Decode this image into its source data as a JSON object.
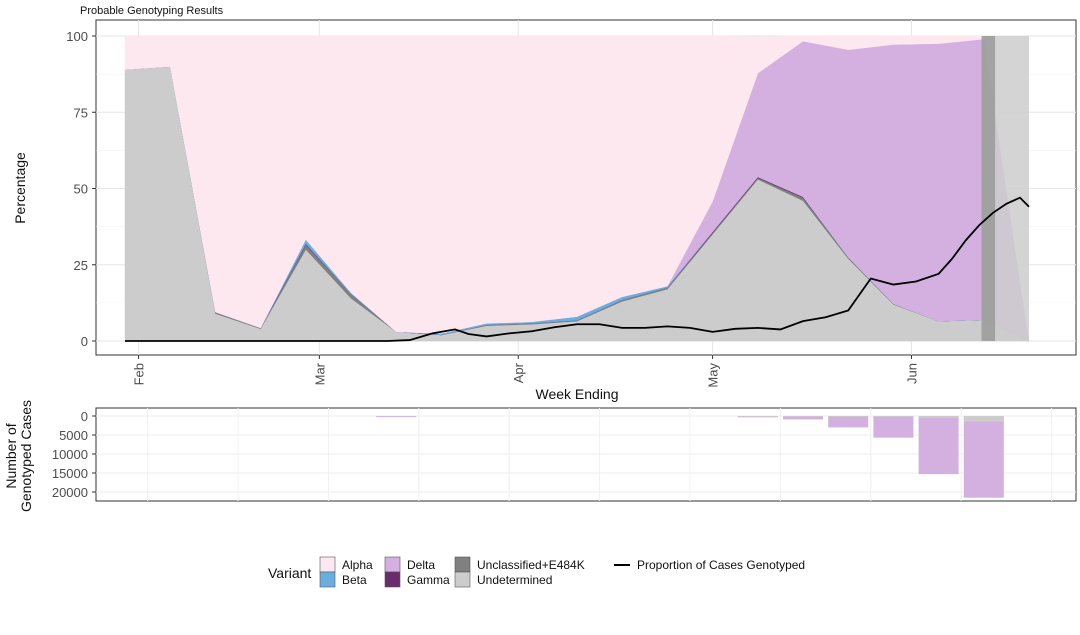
{
  "chart_data": {
    "type": "area",
    "title": "Probable Genotyping Results",
    "xlabel": "Week Ending",
    "ylabel": "Percentage",
    "ylim": [
      0,
      100
    ],
    "yticks": [
      0,
      25,
      50,
      75,
      100
    ],
    "x_ticks": [
      {
        "label": "Feb",
        "week": 0.3
      },
      {
        "label": "Mar",
        "week": 4.3
      },
      {
        "label": "Apr",
        "week": 8.7
      },
      {
        "label": "May",
        "week": 13.0
      },
      {
        "label": "Jun",
        "week": 17.4
      }
    ],
    "xlim": [
      -0.5,
      20.5
    ],
    "weeks": [
      0,
      1,
      2,
      3,
      4,
      5,
      6,
      7,
      8,
      9,
      10,
      11,
      12,
      13,
      14,
      15,
      16,
      17,
      18,
      19,
      20
    ],
    "series": [
      {
        "name": "Undetermined",
        "color": "#cccccc",
        "values": [
          89,
          90,
          9,
          4,
          30,
          14,
          3,
          2,
          5,
          5.5,
          6.5,
          13,
          17,
          35,
          53,
          46,
          27,
          12,
          6.5,
          7,
          0
        ]
      },
      {
        "name": "Unclassified+E484K",
        "color": "#808080",
        "values": [
          0,
          0,
          0.5,
          0.3,
          1.5,
          1.5,
          0,
          0,
          0.3,
          0.3,
          0.3,
          0.5,
          0.5,
          0.5,
          0.5,
          1,
          0.5,
          0.2,
          0,
          0,
          0
        ]
      },
      {
        "name": "Gamma",
        "color": "#6b2c6e",
        "values": [
          0,
          0,
          0,
          0,
          0.3,
          0,
          0,
          0,
          0,
          0,
          0,
          0,
          0,
          0.3,
          0.3,
          0.3,
          0,
          0,
          0,
          0,
          0
        ]
      },
      {
        "name": "Beta",
        "color": "#6aaee0",
        "values": [
          0,
          0,
          0,
          0,
          1.5,
          0.3,
          0,
          0.5,
          0.5,
          0.5,
          1.2,
          1,
          0.5,
          0,
          0,
          0,
          0,
          0,
          0,
          0,
          0
        ]
      },
      {
        "name": "Delta",
        "color": "#d4b0e0",
        "values": [
          0,
          0,
          0,
          0,
          0,
          0,
          0,
          0,
          0,
          0,
          0,
          0,
          0,
          10,
          34,
          51,
          68,
          85,
          91,
          92,
          0
        ]
      },
      {
        "name": "Alpha",
        "color": "#fde8f0",
        "values": [
          11,
          10,
          90.5,
          95.7,
          66.7,
          84.2,
          97,
          97.5,
          94.2,
          93.7,
          92,
          85.5,
          82,
          54.2,
          11.9,
          1.7,
          4.5,
          2.8,
          2.5,
          1,
          0
        ]
      }
    ],
    "shaded_regions": [
      {
        "label": "Undetermined",
        "from_week": 19.0,
        "to_week": 20.0,
        "color": "#cccccc"
      },
      {
        "label": "Unclassified+E484K",
        "from_week": 18.95,
        "to_week": 19.25,
        "color": "#9a9a9a"
      }
    ],
    "proportion_line": {
      "name": "Proportion of Cases Genotyped",
      "x": [
        0,
        1,
        2,
        3,
        4,
        5,
        5.8,
        6.3,
        6.8,
        7.3,
        7.6,
        8,
        8.5,
        9,
        9.5,
        10,
        10.5,
        11,
        11.5,
        12,
        12.5,
        13,
        13.5,
        14,
        14.5,
        15,
        15.5,
        16,
        16.5,
        17,
        17.5,
        18,
        18.3,
        18.6,
        18.9,
        19.2,
        19.5,
        19.8,
        20
      ],
      "values": [
        0,
        0,
        0,
        0,
        0,
        0,
        0,
        0.3,
        2.5,
        3.8,
        2.3,
        1.5,
        2.5,
        3.2,
        4.5,
        5.5,
        5.5,
        4.3,
        4.3,
        4.8,
        4.3,
        3,
        4,
        4.3,
        3.8,
        6.5,
        7.8,
        10,
        20.5,
        18.5,
        19.5,
        22,
        27,
        33,
        38,
        42,
        45,
        47,
        44
      ]
    },
    "panel2": {
      "ylabel": "Number of\nGenotyped Cases",
      "yticks": [
        0,
        5000,
        10000,
        15000,
        20000
      ],
      "ytick_labels": [
        "0",
        "5000",
        "10000",
        "15000",
        "20000"
      ],
      "ylim": [
        0,
        22000
      ],
      "weeks": [
        6,
        14,
        15,
        16,
        17,
        18,
        19
      ],
      "total": [
        300,
        350,
        900,
        3000,
        5700,
        15300,
        21500
      ],
      "undetermined": [
        100,
        200,
        200,
        200,
        200,
        500,
        1500
      ]
    },
    "legend": {
      "title": "Variant",
      "placement": "bottom",
      "items": [
        {
          "label": "Alpha",
          "color": "#fde8f0"
        },
        {
          "label": "Beta",
          "color": "#6aaee0"
        },
        {
          "label": "Delta",
          "color": "#d4b0e0"
        },
        {
          "label": "Gamma",
          "color": "#6b2c6e"
        },
        {
          "label": "Unclassified+E484K",
          "color": "#808080"
        },
        {
          "label": "Undetermined",
          "color": "#cccccc"
        }
      ],
      "line_label": "Proportion of Cases Genotyped"
    }
  }
}
